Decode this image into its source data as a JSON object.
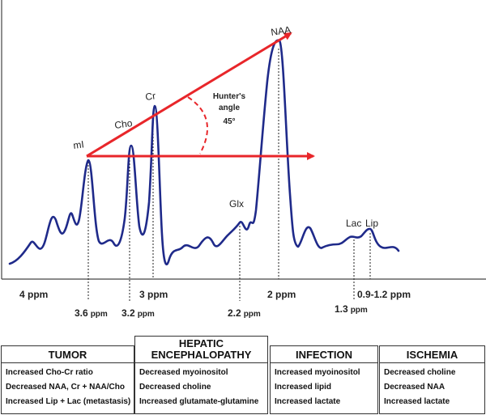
{
  "spectrum": {
    "peaks": [
      {
        "id": "mi",
        "label": "mI"
      },
      {
        "id": "cho",
        "label": "Cho"
      },
      {
        "id": "cr",
        "label": "Cr"
      },
      {
        "id": "naa",
        "label": "NAA"
      },
      {
        "id": "glx",
        "label": "Glx"
      },
      {
        "id": "lac",
        "label": "Lac"
      },
      {
        "id": "lip",
        "label": "Lip"
      }
    ],
    "hunters_angle": {
      "line1": "Hunter's",
      "line2": "angle",
      "value": "45°"
    },
    "ppm_primary": [
      {
        "id": "4",
        "label": "4 ppm"
      },
      {
        "id": "3",
        "label": "3 ppm"
      },
      {
        "id": "2",
        "label": "2 ppm"
      },
      {
        "id": "09-12",
        "label": "0.9-1.2 ppm"
      }
    ],
    "ppm_secondary": [
      {
        "id": "36",
        "num": "3.6",
        "unit": "ppm"
      },
      {
        "id": "32",
        "num": "3.2",
        "unit": "ppm"
      },
      {
        "id": "22",
        "num": "2.2",
        "unit": "ppm"
      },
      {
        "id": "13",
        "num": "1.3",
        "unit": "ppm"
      }
    ],
    "colors": {
      "curve": "#1f2a8a",
      "arrow": "#e8262a",
      "axis": "#444444"
    }
  },
  "conditions": [
    {
      "title": "TUMOR",
      "items": [
        "Increased Cho-Cr ratio",
        "Decreased NAA, Cr + NAA/Cho",
        "Increased Lip + Lac (metastasis)"
      ]
    },
    {
      "title_lines": [
        "HEPATIC",
        "ENCEPHALOPATHY"
      ],
      "items": [
        "Decreased myoinositol",
        "Decreased choline",
        "Increased glutamate-glutamine"
      ]
    },
    {
      "title": "INFECTION",
      "items": [
        "Increased myoinositol",
        "Increased lipid",
        "Increased lactate"
      ]
    },
    {
      "title": "ISCHEMIA",
      "items": [
        "Decreased choline",
        "Decreased NAA",
        "Increased lactate"
      ]
    }
  ]
}
